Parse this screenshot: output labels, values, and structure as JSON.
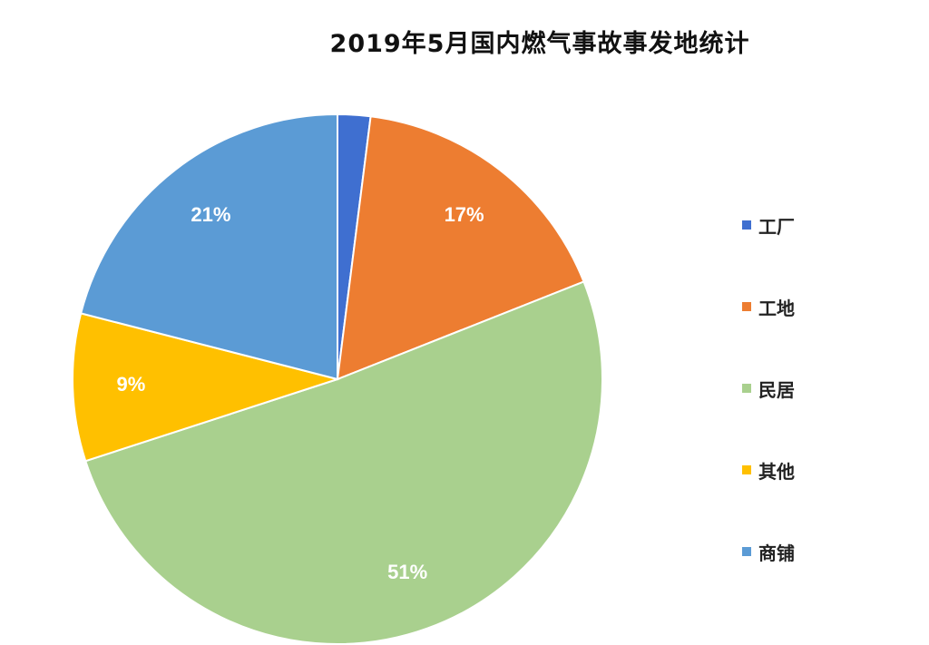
{
  "chart_data": {
    "type": "pie",
    "title": "2019年5月国内燃气事故事发地统计",
    "slices": [
      {
        "name": "工厂",
        "value": 2,
        "label": "",
        "color": "#3f6fd0"
      },
      {
        "name": "工地",
        "value": 17,
        "label": "17%",
        "color": "#ed7d31"
      },
      {
        "name": "民居",
        "value": 51,
        "label": "51%",
        "color": "#a9d08e"
      },
      {
        "name": "其他",
        "value": 9,
        "label": "9%",
        "color": "#ffc000"
      },
      {
        "name": "商铺",
        "value": 21,
        "label": "21%",
        "color": "#5b9bd5"
      }
    ],
    "legend_position": "right"
  }
}
